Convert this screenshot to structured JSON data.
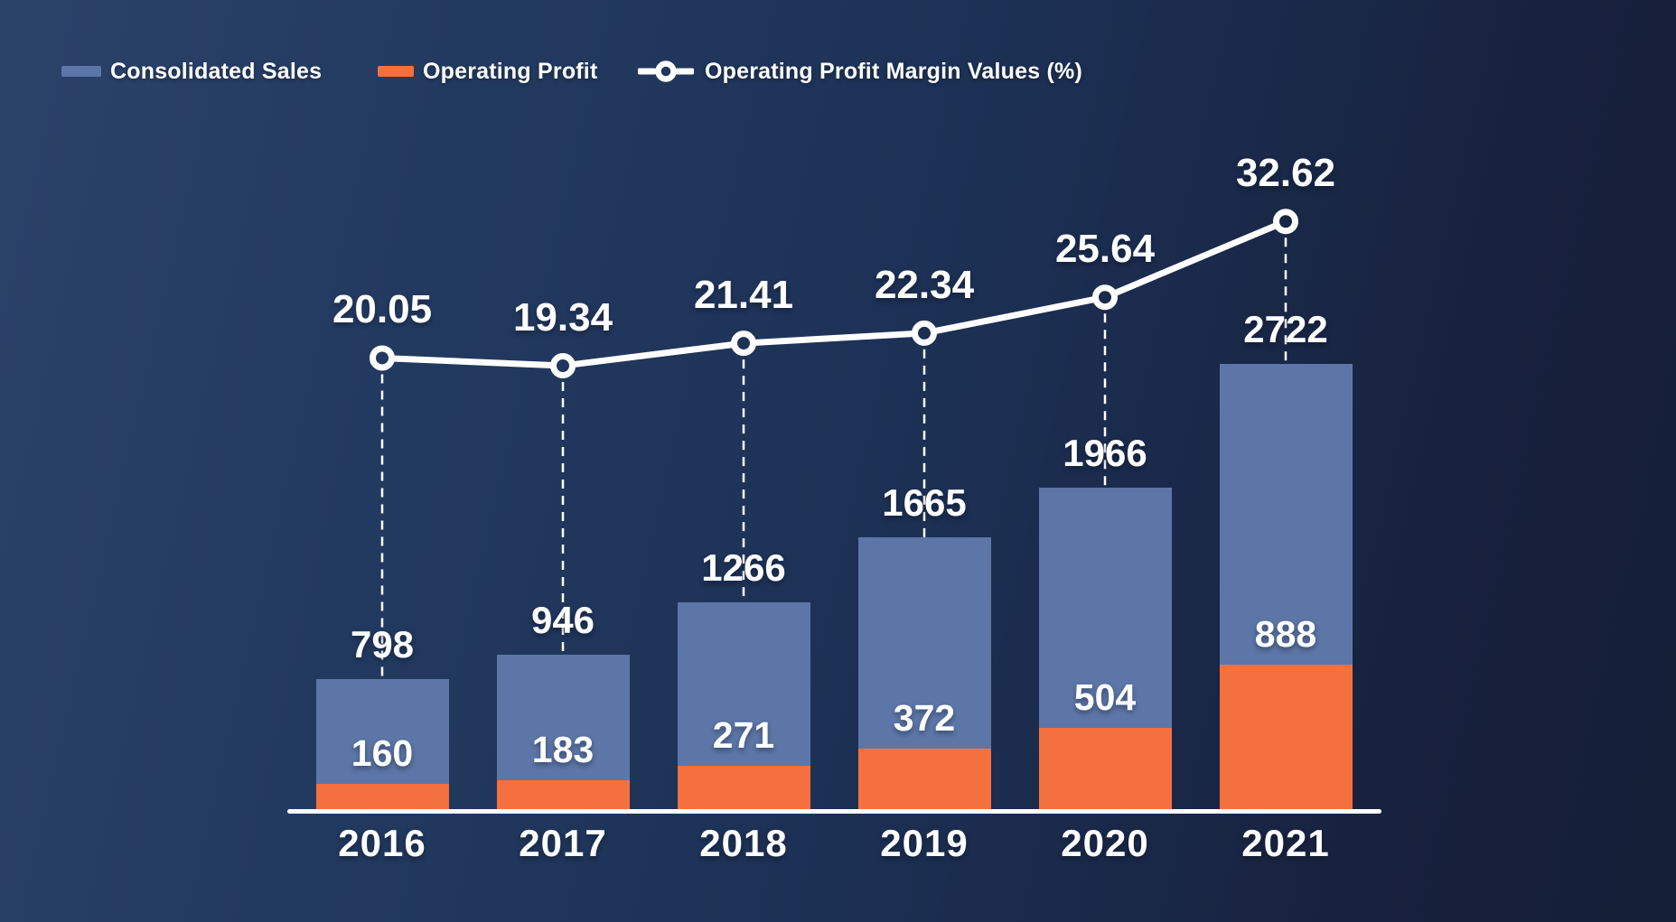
{
  "legend": {
    "items": [
      {
        "label": "Consolidated Sales",
        "marker": "swatch"
      },
      {
        "label": "Operating Profit",
        "marker": "swatch"
      },
      {
        "label": "Operating Profit Margin Values (%)",
        "marker": "line-circle"
      }
    ]
  },
  "chart_data": {
    "type": "combo-bar-line",
    "categories": [
      "2016",
      "2017",
      "2018",
      "2019",
      "2020",
      "2021"
    ],
    "series": [
      {
        "name": "Consolidated Sales",
        "type": "bar",
        "color": "#5C76A7",
        "values": [
          798,
          946,
          1266,
          1665,
          1966,
          2722
        ]
      },
      {
        "name": "Operating Profit",
        "type": "bar",
        "color": "#F5703F",
        "values": [
          160,
          183,
          271,
          372,
          504,
          888
        ]
      },
      {
        "name": "Operating Profit Margin Values (%)",
        "type": "line",
        "color": "#FFFFFF",
        "values": [
          20.05,
          19.34,
          21.41,
          22.34,
          25.64,
          32.62
        ]
      }
    ],
    "title": "",
    "xlabel": "",
    "ylabel": "",
    "grid": false,
    "legend_position": "top-left",
    "value_labels_shown": true,
    "y_axis_shown": false
  },
  "colors": {
    "background_light": "#2B4269",
    "background_dark": "#161F38",
    "bar_sales": "#5C76A7",
    "bar_profit": "#F5703F",
    "line": "#FFFFFF",
    "axis_line": "#FFFFFF",
    "text": "#FFFFFF"
  }
}
